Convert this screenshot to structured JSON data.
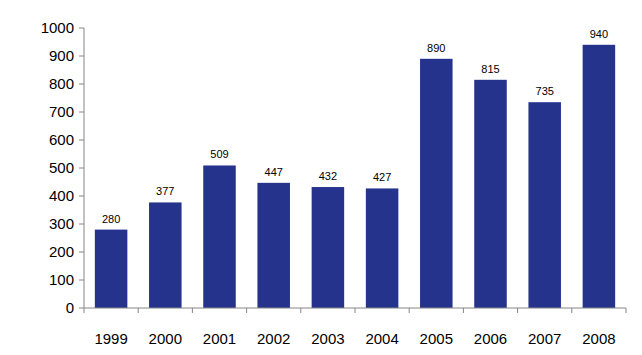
{
  "chart_data": {
    "type": "bar",
    "categories": [
      "1999",
      "2000",
      "2001",
      "2002",
      "2003",
      "2004",
      "2005",
      "2006",
      "2007",
      "2008"
    ],
    "values": [
      280,
      377,
      509,
      447,
      432,
      427,
      890,
      815,
      735,
      940
    ],
    "color": "#25338c",
    "ylim": [
      0,
      1000
    ],
    "yticks": [
      0,
      100,
      200,
      300,
      400,
      500,
      600,
      700,
      800,
      900,
      1000
    ],
    "grid": false,
    "data_labels": true
  }
}
